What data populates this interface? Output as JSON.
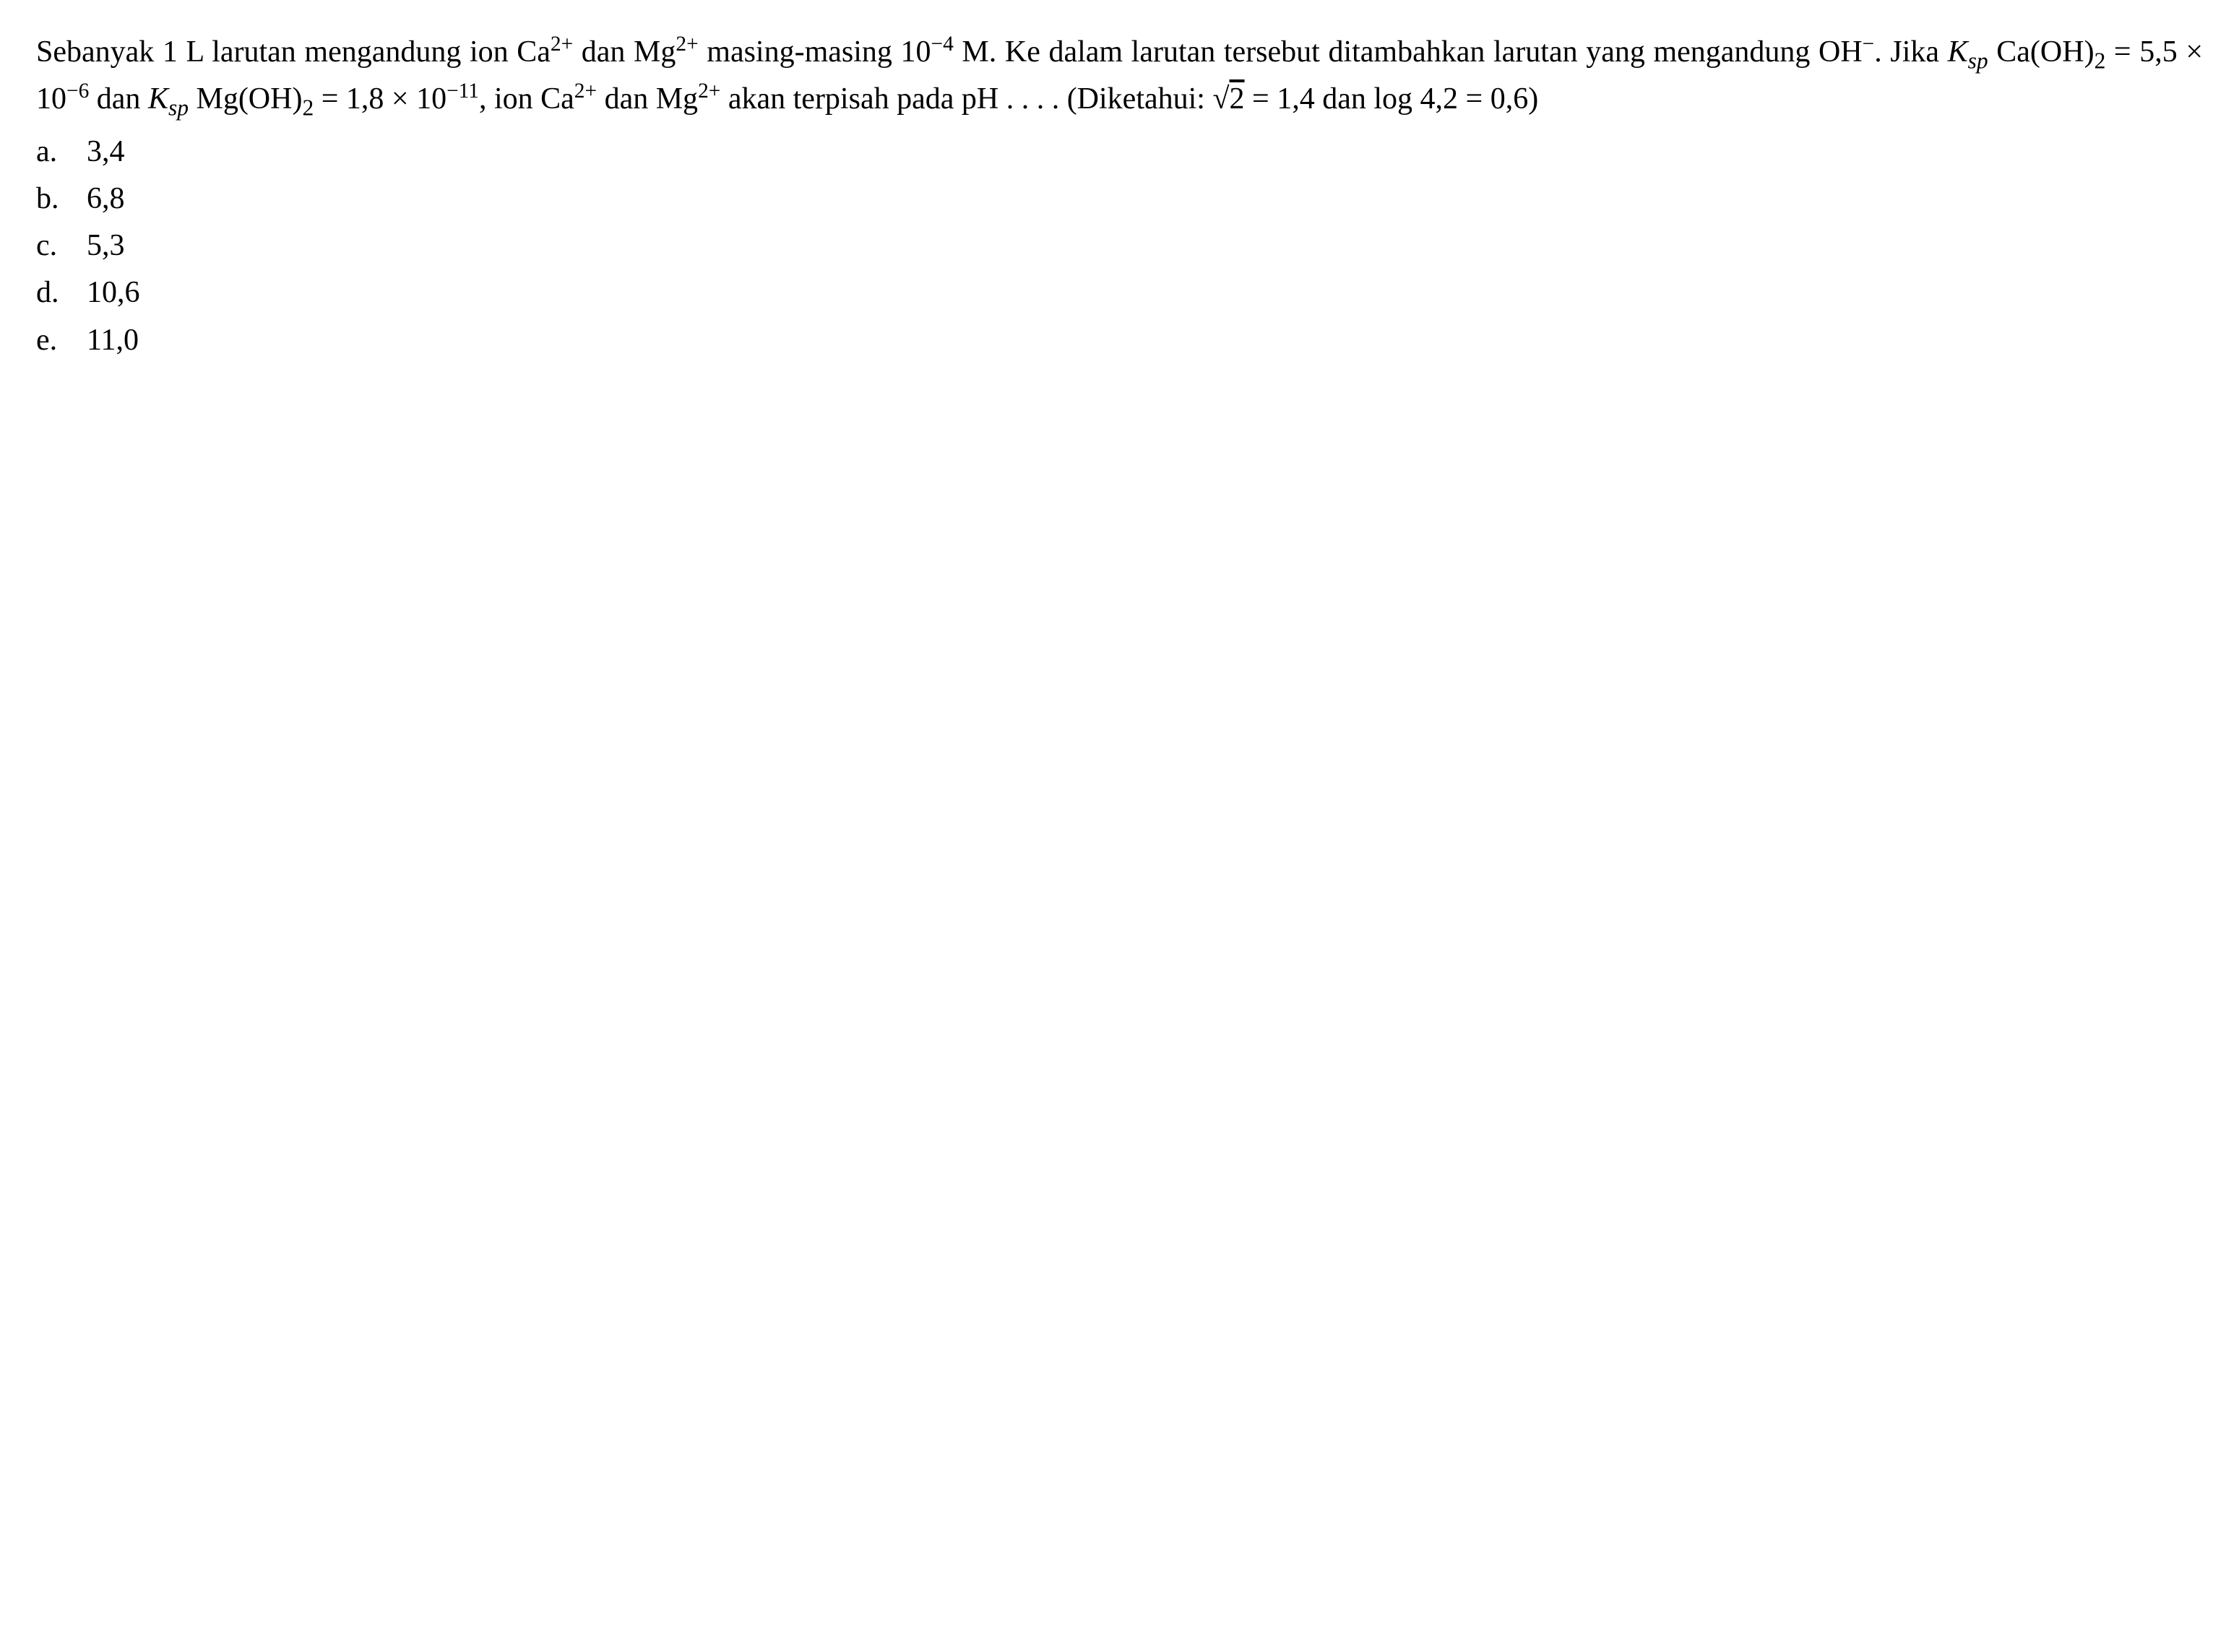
{
  "question": {
    "text_parts": {
      "p1": "Sebanyak 1 L larutan mengandung ion Ca",
      "p2": " dan Mg",
      "p3": " masing-masing 10",
      "p4": " M. Ke dalam larutan tersebut ditambahkan larutan yang mengandung OH",
      "p5": ". Jika ",
      "p6": " Ca(OH)",
      "p7": " = 5,5 × 10",
      "p8": " dan ",
      "p9": " Mg(OH)",
      "p10": " = 1,8 × 10",
      "p11": ", ion Ca",
      "p12": " dan Mg",
      "p13": " akan terpisah pada pH . . . . (Diketahui: ",
      "p14": " = 1,4 dan log 4,2 = 0,6)"
    },
    "superscripts": {
      "ca_charge": "2+",
      "mg_charge": "2+",
      "exp_neg4": "−4",
      "oh_charge": "−",
      "exp_neg6": "−6",
      "exp_neg11": "−11"
    },
    "subscripts": {
      "ksp": "sp",
      "two": "2"
    },
    "symbols": {
      "K": "K",
      "sqrt": "√",
      "sqrt_arg": "2"
    }
  },
  "options": {
    "a": {
      "letter": "a.",
      "value": "3,4"
    },
    "b": {
      "letter": "b.",
      "value": "6,8"
    },
    "c": {
      "letter": "c.",
      "value": "5,3"
    },
    "d": {
      "letter": "d.",
      "value": "10,6"
    },
    "e": {
      "letter": "e.",
      "value": "11,0"
    }
  },
  "style": {
    "font_family": "Times New Roman",
    "font_size_pt": 42,
    "text_color": "#000000",
    "background_color": "#ffffff",
    "line_height": 1.55
  }
}
